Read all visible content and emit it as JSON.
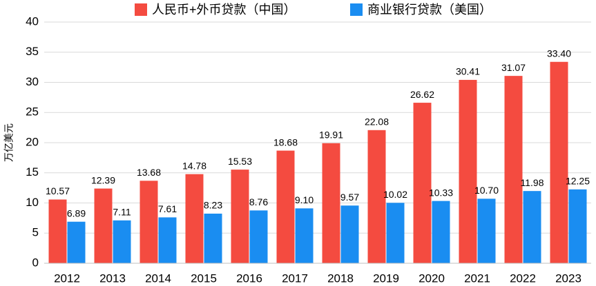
{
  "chart_data": {
    "type": "bar",
    "y_label": "万亿美元",
    "categories": [
      "2012",
      "2013",
      "2014",
      "2015",
      "2016",
      "2017",
      "2018",
      "2019",
      "2020",
      "2021",
      "2022",
      "2023"
    ],
    "series": [
      {
        "name": "人民币+外币贷款（中国）",
        "color": "#f44b40",
        "values": [
          10.57,
          12.39,
          13.68,
          14.78,
          15.53,
          18.68,
          19.91,
          22.08,
          26.62,
          30.41,
          31.07,
          33.4
        ],
        "value_labels": [
          "10.57",
          "12.39",
          "13.68",
          "14.78",
          "15.53",
          "18.68",
          "19.91",
          "22.08",
          "26.62",
          "30.41",
          "31.07",
          "33.40"
        ]
      },
      {
        "name": "商业银行贷款（美国）",
        "color": "#1a8df1",
        "values": [
          6.89,
          7.11,
          7.61,
          8.23,
          8.76,
          9.1,
          9.57,
          10.02,
          10.33,
          10.7,
          11.98,
          12.25
        ],
        "value_labels": [
          "6.89",
          "7.11",
          "7.61",
          "8.23",
          "8.76",
          "9.10",
          "9.57",
          "10.02",
          "10.33",
          "10.70",
          "11.98",
          "12.25"
        ]
      }
    ],
    "ylim": [
      0,
      40
    ],
    "yticks": [
      0,
      5,
      10,
      15,
      20,
      25,
      30,
      35,
      40
    ],
    "grid": true
  }
}
